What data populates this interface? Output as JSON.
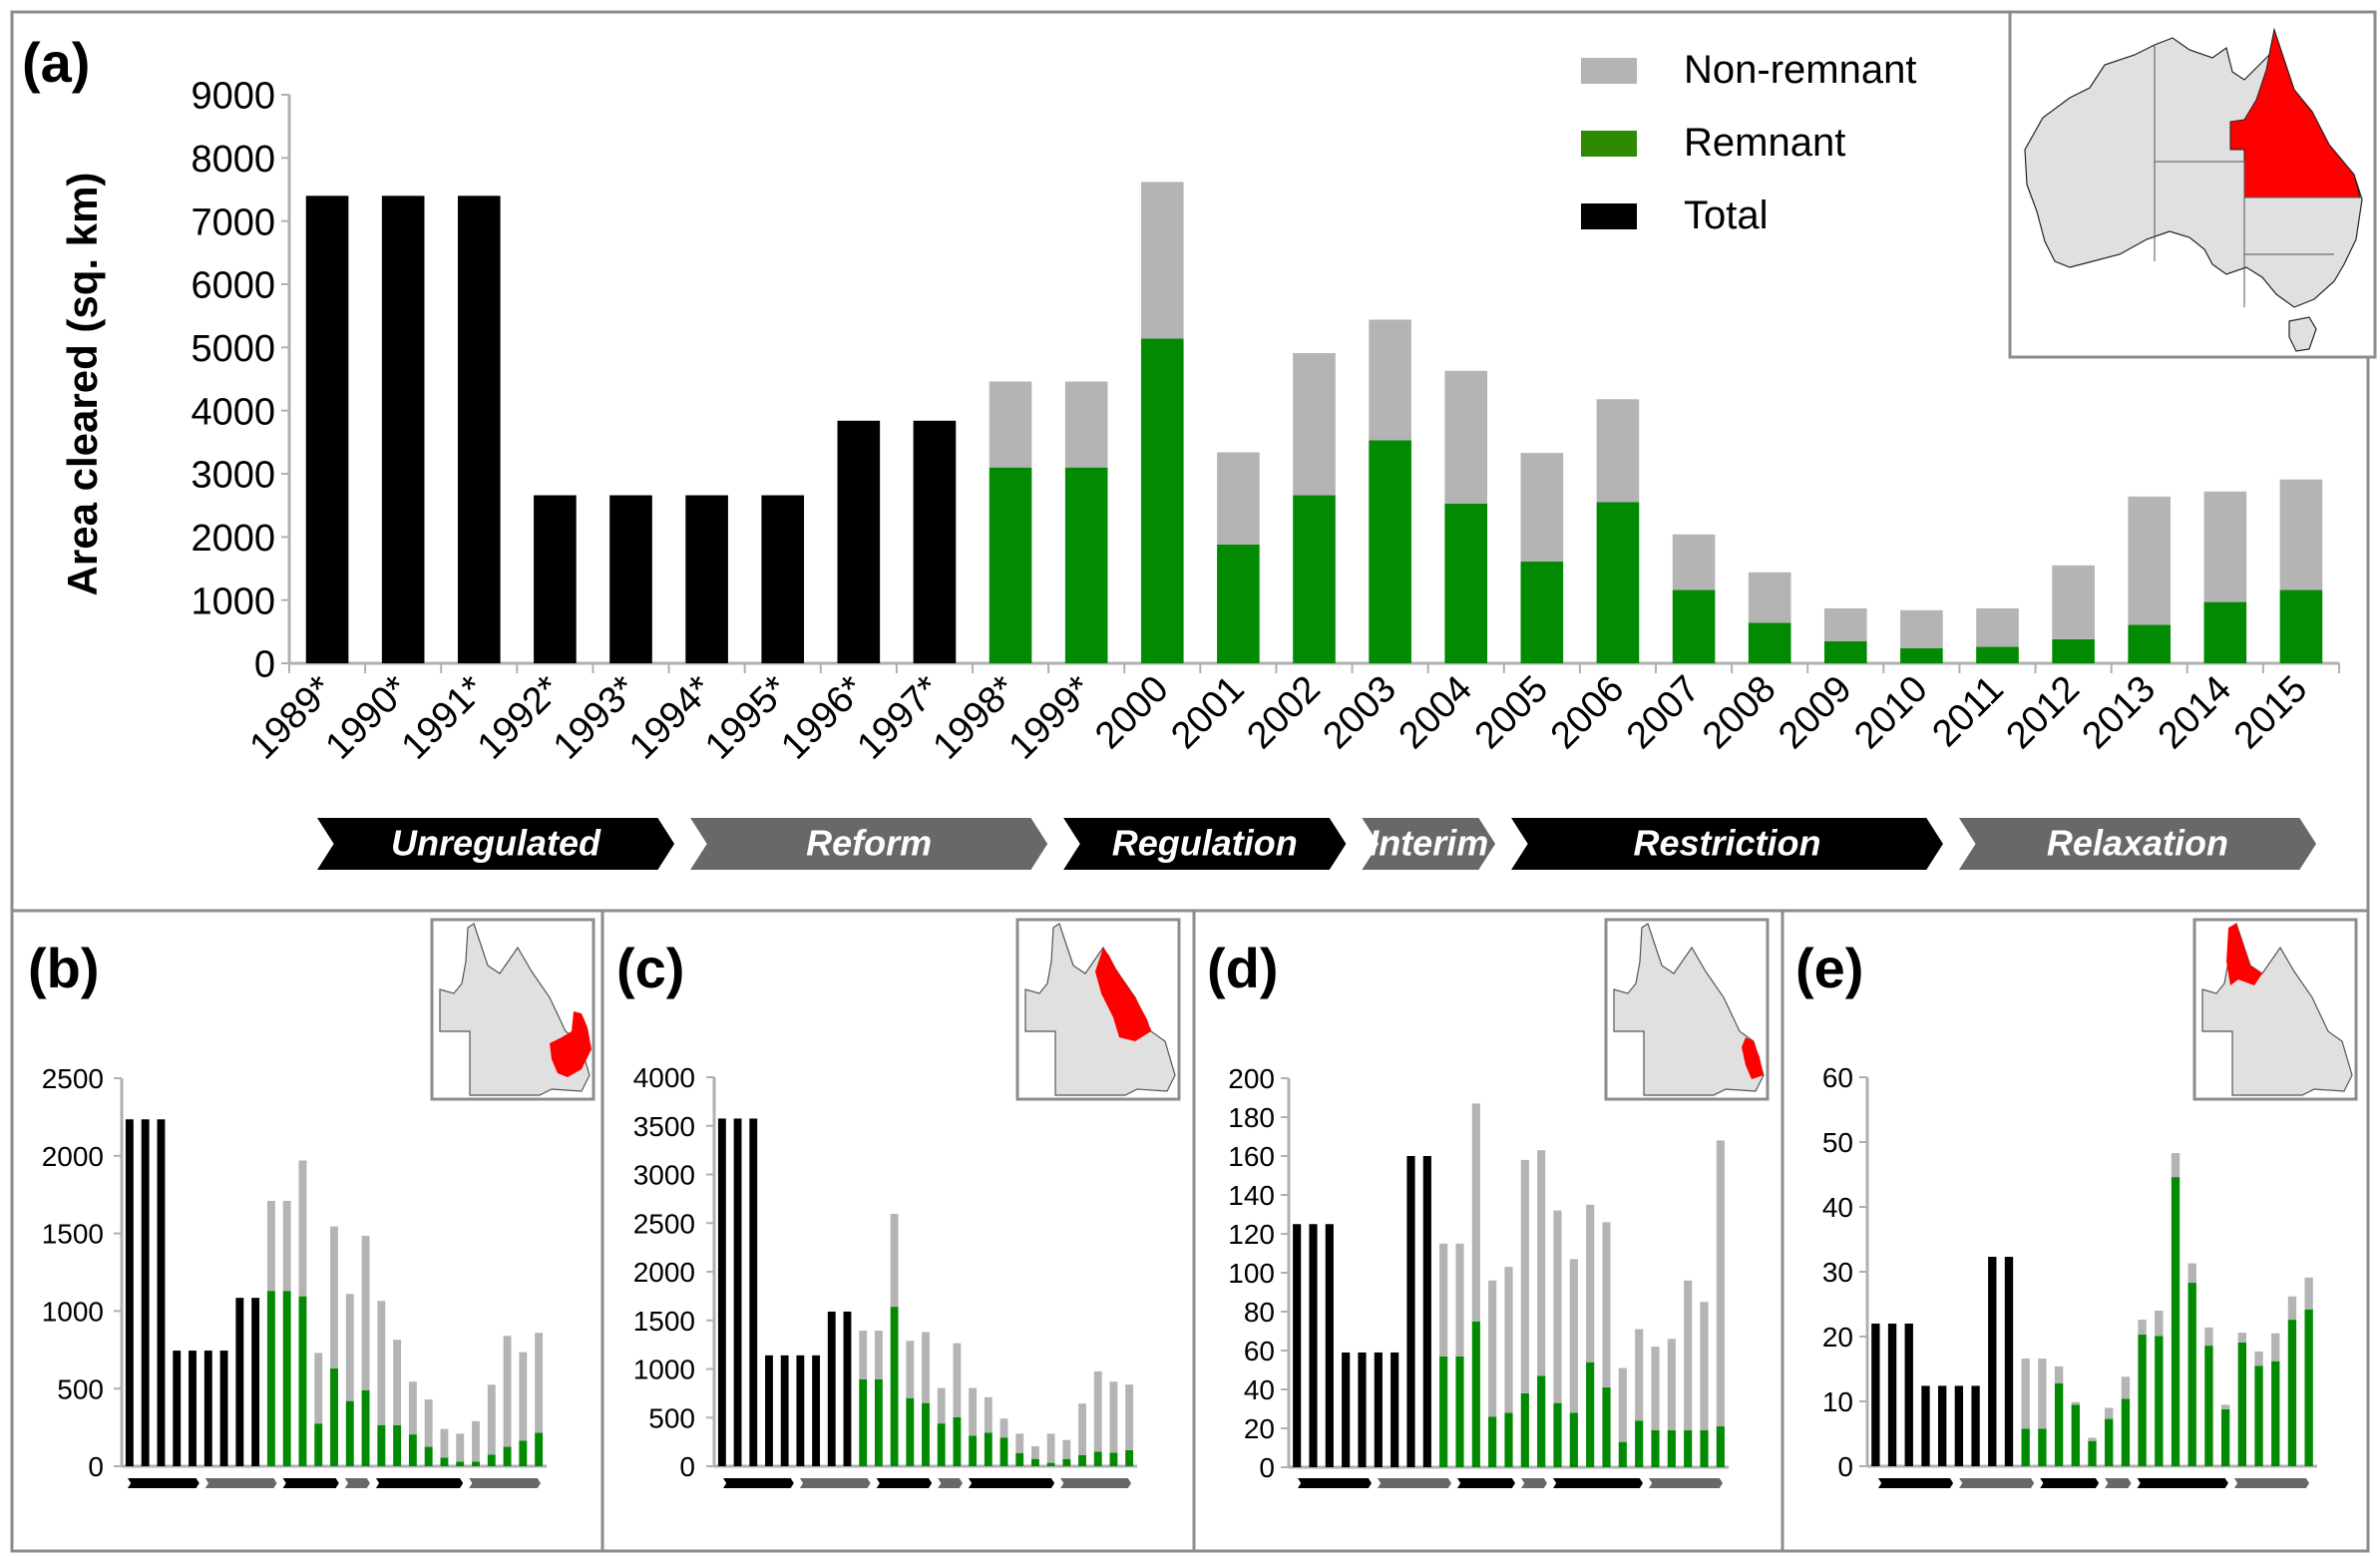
{
  "colors": {
    "remnant": "#038a03",
    "non_remnant": "#b4b4b4",
    "total": "#000000",
    "phase_dark": "#000000",
    "phase_light": "#686868",
    "highlight_region": "#ff0000",
    "map_fill": "#e0e0e0",
    "frame": "#8c8c8c",
    "axis": "#b0b0b0"
  },
  "legend": {
    "placement": "top-right",
    "items": [
      {
        "key": "non_remnant",
        "label": "Non-remnant"
      },
      {
        "key": "remnant",
        "label": "Remnant"
      },
      {
        "key": "total",
        "label": "Total"
      }
    ]
  },
  "phases": [
    {
      "label": "Unregulated",
      "from": "1989",
      "to": "1993",
      "shade": "dark"
    },
    {
      "label": "Reform",
      "from": "1994",
      "to": "1998",
      "shade": "light"
    },
    {
      "label": "Regulation",
      "from": "1999",
      "to": "2002",
      "shade": "dark"
    },
    {
      "label": "Interim",
      "from": "2003",
      "to": "2004",
      "shade": "light"
    },
    {
      "label": "Restriction",
      "from": "2005",
      "to": "2010",
      "shade": "dark"
    },
    {
      "label": "Relaxation",
      "from": "2011",
      "to": "2015",
      "shade": "light"
    }
  ],
  "chart_data": [
    {
      "panel": "(a)",
      "type": "bar",
      "stacked": true,
      "title": "",
      "region": "Queensland",
      "xlabel": "",
      "ylabel": "Area cleared (sq. km)",
      "ylim": [
        0,
        9000
      ],
      "yticks": [
        0,
        1000,
        2000,
        3000,
        4000,
        5000,
        6000,
        7000,
        8000,
        9000
      ],
      "grid": false,
      "categories": [
        "1989*",
        "1990*",
        "1991*",
        "1992*",
        "1993*",
        "1994*",
        "1995*",
        "1996*",
        "1997*",
        "1998*",
        "1999*",
        "2000",
        "2001",
        "2002",
        "2003",
        "2004",
        "2005",
        "2006",
        "2007",
        "2008",
        "2009",
        "2010",
        "2011",
        "2012",
        "2013",
        "2014",
        "2015"
      ],
      "series": [
        {
          "name": "Total",
          "values": [
            7400,
            7400,
            7400,
            2660,
            2660,
            2660,
            2660,
            3840,
            3840,
            null,
            null,
            null,
            null,
            null,
            null,
            null,
            null,
            null,
            null,
            null,
            null,
            null,
            null,
            null,
            null,
            null,
            null
          ]
        },
        {
          "name": "Remnant",
          "values": [
            null,
            null,
            null,
            null,
            null,
            null,
            null,
            null,
            null,
            3100,
            3100,
            5140,
            1880,
            2660,
            3530,
            2530,
            1610,
            2550,
            1160,
            640,
            350,
            240,
            260,
            380,
            610,
            970,
            1160
          ]
        },
        {
          "name": "Non-remnant",
          "values": [
            null,
            null,
            null,
            null,
            null,
            null,
            null,
            null,
            null,
            1360,
            1360,
            2480,
            1460,
            2250,
            1910,
            2100,
            1720,
            1630,
            880,
            800,
            520,
            600,
            610,
            1170,
            2030,
            1750,
            1750
          ]
        }
      ]
    },
    {
      "panel": "(b)",
      "type": "bar",
      "stacked": true,
      "ylim": [
        0,
        2500
      ],
      "yticks": [
        0,
        500,
        1000,
        1500,
        2000,
        2500
      ],
      "categories": [
        "1989",
        "1990",
        "1991",
        "1992",
        "1993",
        "1994",
        "1995",
        "1996",
        "1997",
        "1998",
        "1999",
        "2000",
        "2001",
        "2002",
        "2003",
        "2004",
        "2005",
        "2006",
        "2007",
        "2008",
        "2009",
        "2010",
        "2011",
        "2012",
        "2013",
        "2014",
        "2015"
      ],
      "series": [
        {
          "name": "Total",
          "values": [
            2235,
            2235,
            2235,
            745,
            745,
            745,
            745,
            1085,
            1085,
            null,
            null,
            null,
            null,
            null,
            null,
            null,
            null,
            null,
            null,
            null,
            null,
            null,
            null,
            null,
            null,
            null,
            null
          ]
        },
        {
          "name": "Remnant",
          "values": [
            null,
            null,
            null,
            null,
            null,
            null,
            null,
            null,
            null,
            1130,
            1130,
            1095,
            275,
            630,
            420,
            490,
            265,
            265,
            205,
            125,
            55,
            30,
            30,
            75,
            125,
            165,
            215
          ]
        },
        {
          "name": "Non-remnant",
          "values": [
            null,
            null,
            null,
            null,
            null,
            null,
            null,
            null,
            null,
            580,
            580,
            875,
            455,
            915,
            690,
            995,
            800,
            550,
            340,
            305,
            185,
            180,
            260,
            450,
            715,
            570,
            645
          ]
        }
      ]
    },
    {
      "panel": "(c)",
      "type": "bar",
      "stacked": true,
      "ylim": [
        0,
        4000
      ],
      "yticks": [
        0,
        500,
        1000,
        1500,
        2000,
        2500,
        3000,
        3500,
        4000
      ],
      "categories": [
        "1989",
        "1990",
        "1991",
        "1992",
        "1993",
        "1994",
        "1995",
        "1996",
        "1997",
        "1998",
        "1999",
        "2000",
        "2001",
        "2002",
        "2003",
        "2004",
        "2005",
        "2006",
        "2007",
        "2008",
        "2009",
        "2010",
        "2011",
        "2012",
        "2013",
        "2014",
        "2015"
      ],
      "series": [
        {
          "name": "Total",
          "values": [
            3575,
            3575,
            3575,
            1140,
            1140,
            1140,
            1140,
            1590,
            1590,
            null,
            null,
            null,
            null,
            null,
            null,
            null,
            null,
            null,
            null,
            null,
            null,
            null,
            null,
            null,
            null,
            null,
            null
          ]
        },
        {
          "name": "Remnant",
          "values": [
            null,
            null,
            null,
            null,
            null,
            null,
            null,
            null,
            null,
            895,
            895,
            1640,
            700,
            650,
            440,
            505,
            315,
            345,
            295,
            135,
            75,
            35,
            75,
            115,
            150,
            140,
            165
          ]
        },
        {
          "name": "Non-remnant",
          "values": [
            null,
            null,
            null,
            null,
            null,
            null,
            null,
            null,
            null,
            500,
            500,
            955,
            590,
            730,
            365,
            760,
            490,
            365,
            195,
            200,
            130,
            300,
            195,
            530,
            825,
            730,
            675
          ]
        }
      ]
    },
    {
      "panel": "(d)",
      "type": "bar",
      "stacked": true,
      "ylim": [
        0,
        200
      ],
      "yticks": [
        0,
        20,
        40,
        60,
        80,
        100,
        120,
        140,
        160,
        180,
        200
      ],
      "categories": [
        "1989",
        "1990",
        "1991",
        "1992",
        "1993",
        "1994",
        "1995",
        "1996",
        "1997",
        "1998",
        "1999",
        "2000",
        "2001",
        "2002",
        "2003",
        "2004",
        "2005",
        "2006",
        "2007",
        "2008",
        "2009",
        "2010",
        "2011",
        "2012",
        "2013",
        "2014",
        "2015"
      ],
      "series": [
        {
          "name": "Total",
          "values": [
            125,
            125,
            125,
            59,
            59,
            59,
            59,
            160,
            160,
            null,
            null,
            null,
            null,
            null,
            null,
            null,
            null,
            null,
            null,
            null,
            null,
            null,
            null,
            null,
            null,
            null,
            null
          ]
        },
        {
          "name": "Remnant",
          "values": [
            null,
            null,
            null,
            null,
            null,
            null,
            null,
            null,
            null,
            57,
            57,
            75,
            26,
            28,
            38,
            47,
            33,
            28,
            54,
            41,
            13,
            24,
            19,
            19,
            19,
            19,
            21
          ]
        },
        {
          "name": "Non-remnant",
          "values": [
            null,
            null,
            null,
            null,
            null,
            null,
            null,
            null,
            null,
            58,
            58,
            112,
            70,
            75,
            120,
            116,
            99,
            79,
            81,
            85,
            38,
            47,
            43,
            47,
            77,
            66,
            147
          ]
        }
      ]
    },
    {
      "panel": "(e)",
      "type": "bar",
      "stacked": true,
      "ylim": [
        0,
        60
      ],
      "yticks": [
        0,
        10,
        20,
        30,
        40,
        50,
        60
      ],
      "categories": [
        "1989",
        "1990",
        "1991",
        "1992",
        "1993",
        "1994",
        "1995",
        "1996",
        "1997",
        "1998",
        "1999",
        "2000",
        "2001",
        "2002",
        "2003",
        "2004",
        "2005",
        "2006",
        "2007",
        "2008",
        "2009",
        "2010",
        "2011",
        "2012",
        "2013",
        "2014",
        "2015"
      ],
      "series": [
        {
          "name": "Total",
          "values": [
            22,
            22,
            22,
            12.4,
            12.4,
            12.4,
            12.4,
            32.3,
            32.3,
            null,
            null,
            null,
            null,
            null,
            null,
            null,
            null,
            null,
            null,
            null,
            null,
            null,
            null,
            null,
            null,
            null,
            null
          ]
        },
        {
          "name": "Remnant",
          "values": [
            null,
            null,
            null,
            null,
            null,
            null,
            null,
            null,
            null,
            5.8,
            5.8,
            12.8,
            9.5,
            3.9,
            7.3,
            10.4,
            20.3,
            20.1,
            44.6,
            28.3,
            18.6,
            8.8,
            19.1,
            15.5,
            16.2,
            22.6,
            24.2
          ]
        },
        {
          "name": "Non-remnant",
          "values": [
            null,
            null,
            null,
            null,
            null,
            null,
            null,
            null,
            null,
            10.8,
            10.8,
            2.6,
            0.4,
            0.5,
            1.7,
            3.4,
            2.3,
            3.9,
            3.7,
            3.0,
            2.8,
            0.7,
            1.5,
            2.2,
            4.3,
            3.6,
            4.9
          ]
        }
      ]
    }
  ]
}
